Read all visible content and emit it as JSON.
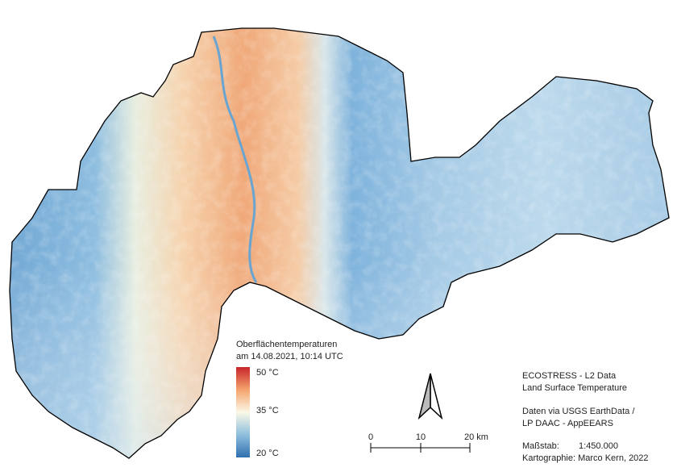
{
  "legend": {
    "title_lines": [
      "Oberflächentemperaturen",
      "am 14.08.2021, 10:14 UTC"
    ],
    "labels": [
      "50 °C",
      "35 °C",
      "20 °C"
    ]
  },
  "scale_bar": {
    "labels": [
      "0",
      "10",
      "20 km"
    ]
  },
  "info": {
    "source_lines": [
      "ECOSTRESS - L2 Data",
      "Land Surface Temperature"
    ],
    "data_lines": [
      "Daten via USGS EarthData /",
      "LP DAAC - AppEEARS"
    ],
    "scale_label": "Maßstab:",
    "scale_value": "1:450.000",
    "credit": "Kartographie: Marco Kern, 2022"
  }
}
